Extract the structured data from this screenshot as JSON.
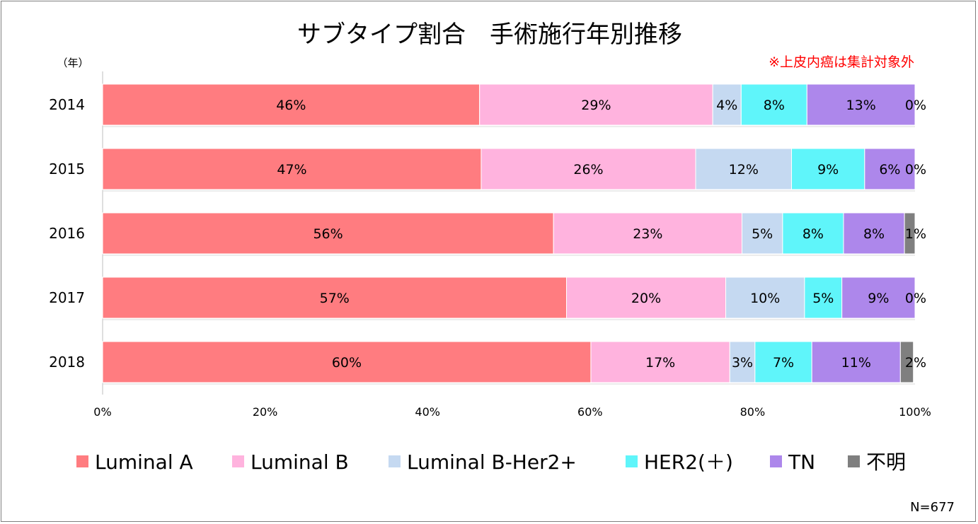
{
  "chart_data": {
    "type": "bar",
    "orientation": "horizontal",
    "stacked": true,
    "percent_stacked": true,
    "title": "サブタイプ割合　手術施行年別推移",
    "note": "※上皮内癌は集計対象外",
    "ylabel": "（年）",
    "categories": [
      "2014",
      "2015",
      "2016",
      "2017",
      "2018"
    ],
    "x_ticks": [
      "0%",
      "20%",
      "40%",
      "60%",
      "80%",
      "100%"
    ],
    "xlim": [
      0,
      100
    ],
    "grid": "vertical-none",
    "legend_position": "bottom",
    "series": [
      {
        "name": "Luminal A",
        "color": "#ff7c80",
        "values": [
          46.4,
          46.6,
          55.5,
          57.1,
          60.1
        ],
        "labels": [
          "46%",
          "47%",
          "56%",
          "57%",
          "60%"
        ]
      },
      {
        "name": "Luminal B",
        "color": "#ffb3de",
        "values": [
          28.7,
          26.4,
          23.2,
          19.6,
          17.1
        ],
        "labels": [
          "29%",
          "26%",
          "23%",
          "20%",
          "17%"
        ]
      },
      {
        "name": "Luminal B-Her2+",
        "color": "#c5d9f1",
        "values": [
          3.5,
          11.8,
          5.0,
          9.7,
          3.1
        ],
        "labels": [
          "4%",
          "12%",
          "5%",
          "10%",
          "3%"
        ]
      },
      {
        "name": "HER2(＋)",
        "color": "#5ff5fa",
        "values": [
          8.1,
          9.0,
          7.5,
          4.6,
          7.0
        ],
        "labels": [
          "8%",
          "9%",
          "8%",
          "5%",
          "7%"
        ]
      },
      {
        "name": "TN",
        "color": "#ad87eb",
        "values": [
          13.3,
          6.2,
          7.5,
          9.0,
          10.9
        ],
        "labels": [
          "13%",
          "6%",
          "8%",
          "9%",
          "11%"
        ]
      },
      {
        "name": "不明",
        "color": "#7f7f7f",
        "values": [
          0,
          0,
          1.3,
          0,
          1.6
        ],
        "labels": [
          "0%",
          "0%",
          "1%",
          "0%",
          "2%"
        ]
      }
    ],
    "footnote": "N=677"
  }
}
